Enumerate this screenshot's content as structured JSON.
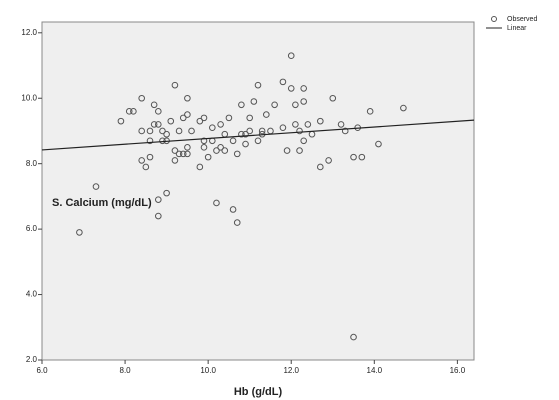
{
  "chart_data": {
    "type": "scatter",
    "annotation": "S. Calcium (mg/dL)",
    "x_label": "Hb (g/dL)",
    "xlim": [
      6,
      16.4
    ],
    "ylim": [
      2,
      12.33
    ],
    "xticks": [
      {
        "value": 6,
        "label": "6.0"
      },
      {
        "value": 8,
        "label": "8.0"
      },
      {
        "value": 10,
        "label": "10.0"
      },
      {
        "value": 12,
        "label": "12.0"
      },
      {
        "value": 14,
        "label": "14.0"
      },
      {
        "value": 16,
        "label": "16.0"
      }
    ],
    "yticks": [
      {
        "value": 2,
        "label": "2.0"
      },
      {
        "value": 4,
        "label": "4.0"
      },
      {
        "value": 6,
        "label": "6.0"
      },
      {
        "value": 8,
        "label": "8.0"
      },
      {
        "value": 10,
        "label": "10.0"
      },
      {
        "value": 12,
        "label": "12.0"
      }
    ],
    "grid": false,
    "legend": "top-right",
    "series": [
      {
        "name": "Observed",
        "type": "scatter",
        "color": "#555555",
        "x": [
          6.9,
          7.3,
          7.9,
          8.1,
          8.2,
          8.4,
          8.4,
          8.4,
          8.5,
          8.6,
          8.6,
          8.6,
          8.7,
          8.7,
          8.8,
          8.8,
          8.9,
          8.9,
          9.0,
          8.8,
          8.8,
          9.0,
          9.0,
          9.1,
          9.2,
          9.2,
          9.2,
          9.3,
          9.3,
          9.4,
          9.4,
          9.5,
          9.5,
          9.5,
          9.5,
          9.6,
          9.8,
          9.8,
          9.9,
          9.9,
          9.9,
          10.0,
          10.1,
          10.1,
          10.2,
          10.2,
          10.3,
          10.3,
          10.4,
          10.4,
          10.5,
          10.6,
          10.6,
          10.7,
          10.7,
          10.8,
          10.8,
          10.9,
          10.9,
          11.0,
          11.0,
          11.1,
          11.2,
          11.2,
          11.3,
          11.3,
          11.4,
          11.5,
          11.6,
          11.8,
          11.8,
          11.9,
          12.0,
          12.0,
          12.1,
          12.1,
          12.2,
          12.2,
          12.3,
          12.3,
          12.3,
          12.4,
          12.5,
          12.7,
          12.7,
          12.9,
          13.0,
          13.2,
          13.3,
          13.5,
          13.5,
          13.6,
          13.7,
          13.9,
          14.1,
          14.7
        ],
        "values": [
          5.9,
          7.3,
          9.3,
          9.6,
          9.6,
          10.0,
          9.0,
          8.1,
          7.9,
          8.7,
          9.0,
          8.2,
          9.8,
          9.2,
          9.6,
          9.2,
          8.7,
          9.0,
          8.7,
          6.4,
          6.9,
          7.1,
          8.9,
          9.3,
          10.4,
          8.4,
          8.1,
          8.3,
          9.0,
          9.4,
          8.3,
          9.5,
          8.3,
          8.5,
          10.0,
          9.0,
          9.3,
          7.9,
          8.5,
          9.4,
          8.7,
          8.2,
          8.7,
          9.1,
          6.8,
          8.4,
          8.5,
          9.2,
          8.9,
          8.4,
          9.4,
          8.7,
          6.6,
          6.2,
          8.3,
          8.9,
          9.8,
          8.9,
          8.6,
          9.4,
          9.0,
          9.9,
          10.4,
          8.7,
          9.0,
          8.9,
          9.5,
          9.0,
          9.8,
          10.5,
          9.1,
          8.4,
          11.3,
          10.3,
          9.8,
          9.2,
          8.4,
          9.0,
          9.9,
          10.3,
          8.7,
          9.2,
          8.9,
          7.9,
          9.3,
          8.1,
          10.0,
          9.2,
          9.0,
          8.2,
          2.7,
          9.1,
          8.2,
          9.6,
          8.6,
          9.7
        ]
      },
      {
        "name": "Linear",
        "type": "line",
        "color": "#222222",
        "x": [
          6,
          16.4
        ],
        "values": [
          8.42,
          9.33
        ]
      }
    ]
  }
}
